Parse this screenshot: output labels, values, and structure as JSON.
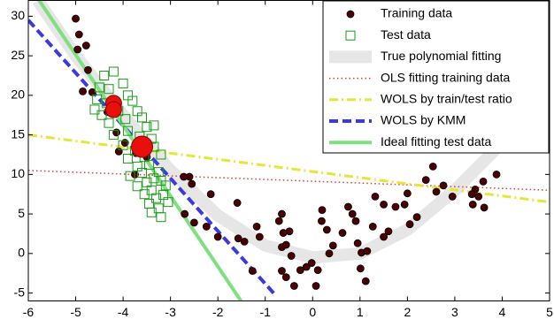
{
  "chart_data": {
    "type": "scatter",
    "xlim": [
      -6,
      5
    ],
    "ylim": [
      -6,
      32
    ],
    "xticks": [
      -6,
      -5,
      -4,
      -3,
      -2,
      -1,
      0,
      1,
      2,
      3,
      4,
      5
    ],
    "yticks": [
      -5,
      0,
      5,
      10,
      15,
      20,
      25,
      30
    ],
    "legend": "upper right",
    "series": [
      {
        "name": "Training data",
        "style": "dot",
        "color": "#4a0000",
        "x": [
          -5.0,
          -4.93,
          -4.96,
          -4.78,
          -4.74,
          -4.85,
          -4.65,
          -4.33,
          -4.14,
          -3.96,
          -4.09,
          -3.73,
          -3.5,
          -3.75,
          -2.72,
          -2.6,
          -2.55,
          -2.15,
          -2.7,
          -2.5,
          -2.24,
          -2.0,
          -1.59,
          -1.57,
          -1.44,
          -1.18,
          -1.12,
          -1.27,
          -0.71,
          -0.65,
          -0.62,
          -0.65,
          -0.56,
          -0.49,
          -0.45,
          -0.65,
          -0.56,
          -0.39,
          -0.13,
          -0.26,
          -0.02,
          0.07,
          0.11,
          0.2,
          0.19,
          0.3,
          0.35,
          0.43,
          0.63,
          0.75,
          0.84,
          0.91,
          0.95,
          1.03,
          1.01,
          1.12,
          1.15,
          1.27,
          1.32,
          1.5,
          1.5,
          1.6,
          1.75,
          2.0,
          1.94,
          2.2,
          2.05,
          2.39,
          2.54,
          2.61,
          2.76,
          2.95,
          3.43,
          3.36,
          3.5,
          3.38,
          3.6,
          3.88,
          3.62
        ],
        "values": [
          29.7,
          27.7,
          25.8,
          26.3,
          23.2,
          20.5,
          20.4,
          17.9,
          15.3,
          14,
          12.9,
          12.7,
          12.2,
          10,
          9.7,
          9.7,
          8.8,
          7.5,
          5,
          3.9,
          3.4,
          2.1,
          6.4,
          1.9,
          1.5,
          3.4,
          2.1,
          -2.2,
          4.1,
          5,
          2.6,
          0.8,
          1.1,
          2.8,
          -0.3,
          -2.2,
          -3,
          -4.1,
          -1.7,
          -2.1,
          -1.2,
          -4.1,
          -2.1,
          5.5,
          4.1,
          3,
          0,
          1,
          2.6,
          5.9,
          5,
          4.1,
          1.3,
          0.1,
          -1.9,
          -3.5,
          0.3,
          3.4,
          7.2,
          6.2,
          2.1,
          2.8,
          5.9,
          7.6,
          6.2,
          4.6,
          3.7,
          9.3,
          11,
          7.8,
          8.6,
          7.2,
          8.1,
          7.5,
          7.2,
          6.2,
          9.1,
          10,
          5.8
        ]
      },
      {
        "name": "Test data",
        "style": "square",
        "color": "#1a9a1a",
        "x": [
          -4.4,
          -4.2,
          -4.5,
          -4.3,
          -4.0,
          -3.9,
          -4.55,
          -4.35,
          -3.8,
          -4.1,
          -3.7,
          -3.95,
          -3.6,
          -4.3,
          -3.5,
          -3.35,
          -3.9,
          -4.2,
          -3.65,
          -3.4,
          -4.0,
          -3.75,
          -3.35,
          -3.55,
          -3.2,
          -3.9,
          -3.7,
          -3.45,
          -3.6,
          -3.25,
          -3.35,
          -3.85,
          -3.5,
          -3.2,
          -3.7,
          -3.4,
          -3.1,
          -3.55,
          -3.3,
          -3.15,
          -3.45,
          -3.25,
          -3.05,
          -3.4,
          -3.2,
          -4.6,
          -4.45
        ],
        "values": [
          22.5,
          23,
          21,
          20.8,
          21.5,
          20,
          19.5,
          19,
          19.3,
          18,
          18,
          17,
          17.2,
          16.5,
          16,
          16.2,
          15.5,
          15,
          14.8,
          14.5,
          13.7,
          13,
          13.5,
          12.2,
          12.5,
          12,
          11,
          11.2,
          10.2,
          10.3,
          9.5,
          9.8,
          9,
          9.2,
          8.5,
          8,
          8.6,
          7.5,
          7,
          7.4,
          6.3,
          5.7,
          6.5,
          5.2,
          4.6,
          18.2,
          17.5
        ]
      },
      {
        "name": "True polynomial fitting",
        "style": "band",
        "color": "#e6e6e6",
        "x": [
          -5.8,
          -5,
          -4,
          -3,
          -2,
          -1,
          0,
          1,
          2,
          3,
          4,
          5
        ],
        "values": [
          32,
          25,
          17.5,
          10.5,
          4.8,
          1.0,
          -0.5,
          0,
          3,
          8,
          14,
          21
        ]
      },
      {
        "name": "OLS fitting training data",
        "style": "dotted",
        "color": "#d04040",
        "x": [
          -6,
          5
        ],
        "values": [
          10.5,
          8
        ]
      },
      {
        "name": "WOLS by train/test ratio",
        "style": "dashdot",
        "color": "#e6e63a",
        "x": [
          -6,
          5
        ],
        "values": [
          15,
          6.5
        ]
      },
      {
        "name": "WOLS by KMM",
        "style": "dashed",
        "color": "#3a3ae0",
        "x": [
          -6,
          -0.78
        ],
        "values": [
          29.5,
          -5.3
        ]
      },
      {
        "name": "Ideal fitting test data",
        "style": "solid",
        "color": "#7ee07e",
        "x": [
          -5.77,
          -1.49
        ],
        "values": [
          32,
          -6.2
        ]
      }
    ],
    "highlighted": {
      "color": "#e8100d",
      "x": [
        -4.2,
        -4.2,
        -3.6
      ],
      "values": [
        19,
        18.2,
        13.5
      ]
    }
  }
}
